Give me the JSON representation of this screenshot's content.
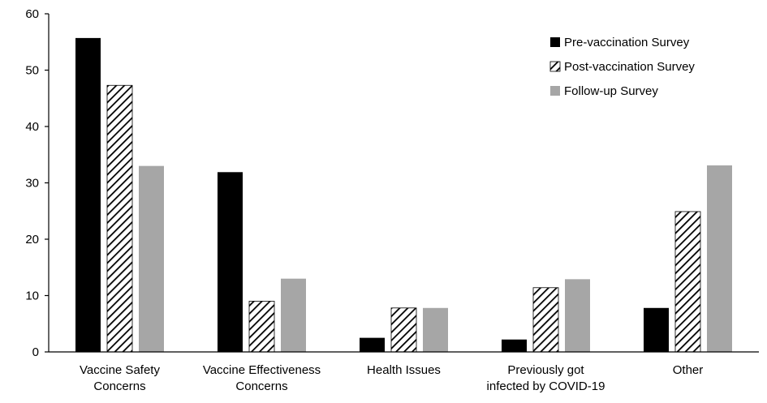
{
  "chart_data": {
    "type": "bar",
    "title": "",
    "xlabel": "",
    "ylabel": "",
    "ylim": [
      0,
      60
    ],
    "yticks": [
      0,
      10,
      20,
      30,
      40,
      50,
      60
    ],
    "grid": false,
    "legend_position": "top-right",
    "categories": [
      [
        "Vaccine Safety",
        "Concerns"
      ],
      [
        "Vaccine Effectiveness",
        "Concerns"
      ],
      [
        "Health Issues"
      ],
      [
        "Previously got",
        "infected by COVID-19"
      ],
      [
        "Other"
      ]
    ],
    "series": [
      {
        "name": "Pre-vaccination Survey",
        "fill": "solid-black",
        "color": "#000000",
        "values": [
          55.7,
          31.9,
          2.5,
          2.2,
          7.8
        ]
      },
      {
        "name": "Post-vaccination Survey",
        "fill": "diagonal-hatch",
        "color": "#000000",
        "values": [
          47.3,
          9.0,
          7.8,
          11.4,
          24.9
        ]
      },
      {
        "name": "Follow-up Survey",
        "fill": "solid-gray",
        "color": "#a6a6a6",
        "values": [
          33.0,
          13.0,
          7.8,
          12.9,
          33.1
        ]
      }
    ]
  }
}
